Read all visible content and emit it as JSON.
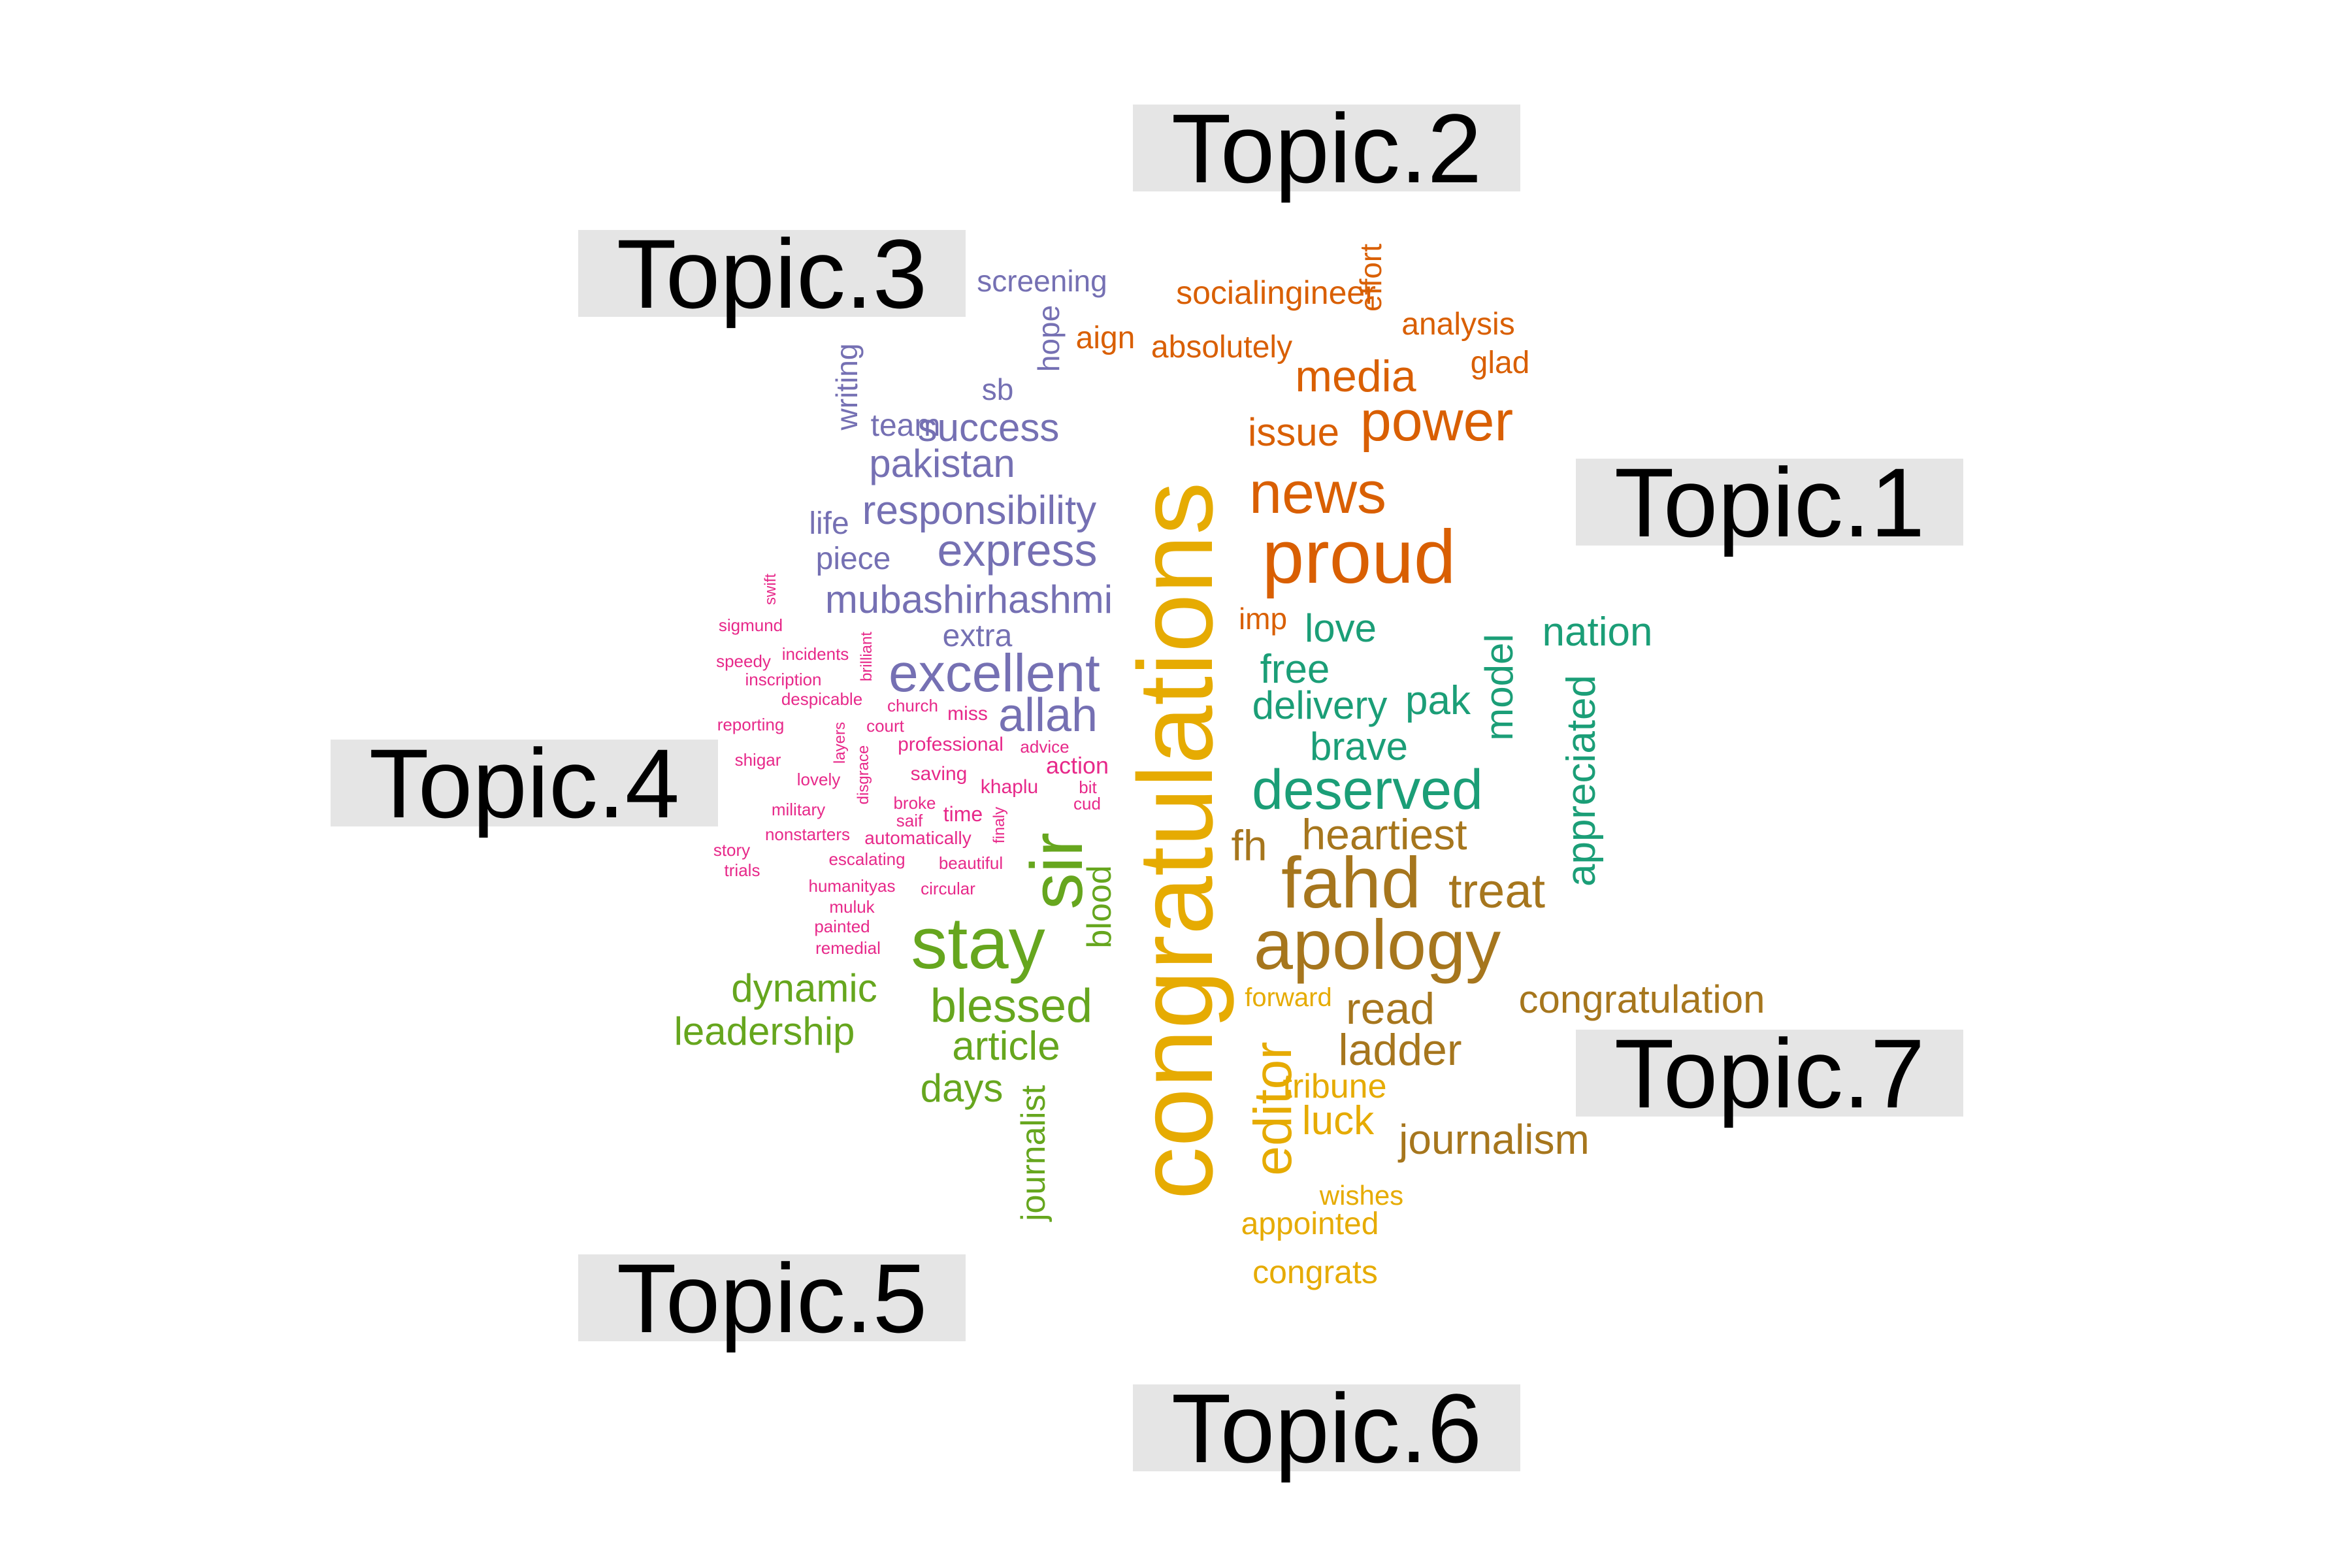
{
  "topics": [
    {
      "label": "Topic.1",
      "color": "#d95f02"
    },
    {
      "label": "Topic.2",
      "color": "#1b9e77"
    },
    {
      "label": "Topic.3",
      "color": "#7570b3"
    },
    {
      "label": "Topic.4",
      "color": "#e7298a"
    },
    {
      "label": "Topic.5",
      "color": "#66a61e"
    },
    {
      "label": "Topic.6",
      "color": "#e6ab02"
    },
    {
      "label": "Topic.7",
      "color": "#a6761d"
    }
  ],
  "words": [
    {
      "text": "socialingineer",
      "topic": 1
    },
    {
      "text": "effort",
      "topic": 1
    },
    {
      "text": "analysis",
      "topic": 1
    },
    {
      "text": "aign",
      "topic": 1
    },
    {
      "text": "absolutely",
      "topic": 1
    },
    {
      "text": "glad",
      "topic": 1
    },
    {
      "text": "media",
      "topic": 1
    },
    {
      "text": "issue",
      "topic": 1
    },
    {
      "text": "power",
      "topic": 1
    },
    {
      "text": "news",
      "topic": 1
    },
    {
      "text": "proud",
      "topic": 1
    },
    {
      "text": "imp",
      "topic": 1
    },
    {
      "text": "love",
      "topic": 2
    },
    {
      "text": "nation",
      "topic": 2
    },
    {
      "text": "model",
      "topic": 2
    },
    {
      "text": "free",
      "topic": 2
    },
    {
      "text": "appreciated",
      "topic": 2
    },
    {
      "text": "delivery",
      "topic": 2
    },
    {
      "text": "pak",
      "topic": 2
    },
    {
      "text": "brave",
      "topic": 2
    },
    {
      "text": "deserved",
      "topic": 2
    },
    {
      "text": "screening",
      "topic": 3
    },
    {
      "text": "hope",
      "topic": 3
    },
    {
      "text": "writing",
      "topic": 3
    },
    {
      "text": "sb",
      "topic": 3
    },
    {
      "text": "team",
      "topic": 3
    },
    {
      "text": "success",
      "topic": 3
    },
    {
      "text": "pakistan",
      "topic": 3
    },
    {
      "text": "responsibility",
      "topic": 3
    },
    {
      "text": "life",
      "topic": 3
    },
    {
      "text": "express",
      "topic": 3
    },
    {
      "text": "piece",
      "topic": 3
    },
    {
      "text": "mubashirhashmi",
      "topic": 3
    },
    {
      "text": "extra",
      "topic": 3
    },
    {
      "text": "excellent",
      "topic": 3
    },
    {
      "text": "allah",
      "topic": 3
    },
    {
      "text": "swift",
      "topic": 4
    },
    {
      "text": "sigmund",
      "topic": 4
    },
    {
      "text": "brilliant",
      "topic": 4
    },
    {
      "text": "speedy",
      "topic": 4
    },
    {
      "text": "incidents",
      "topic": 4
    },
    {
      "text": "inscription",
      "topic": 4
    },
    {
      "text": "despicable",
      "topic": 4
    },
    {
      "text": "church",
      "topic": 4
    },
    {
      "text": "miss",
      "topic": 4
    },
    {
      "text": "reporting",
      "topic": 4
    },
    {
      "text": "court",
      "topic": 4
    },
    {
      "text": "layers",
      "topic": 4
    },
    {
      "text": "disgrace",
      "topic": 4
    },
    {
      "text": "professional",
      "topic": 4
    },
    {
      "text": "advice",
      "topic": 4
    },
    {
      "text": "shigar",
      "topic": 4
    },
    {
      "text": "action",
      "topic": 4
    },
    {
      "text": "lovely",
      "topic": 4
    },
    {
      "text": "saving",
      "topic": 4
    },
    {
      "text": "khaplu",
      "topic": 4
    },
    {
      "text": "bit",
      "topic": 4
    },
    {
      "text": "broke",
      "topic": 4
    },
    {
      "text": "cud",
      "topic": 4
    },
    {
      "text": "military",
      "topic": 4
    },
    {
      "text": "saif",
      "topic": 4
    },
    {
      "text": "time",
      "topic": 4
    },
    {
      "text": "finaly",
      "topic": 4
    },
    {
      "text": "nonstarters",
      "topic": 4
    },
    {
      "text": "automatically",
      "topic": 4
    },
    {
      "text": "story",
      "topic": 4
    },
    {
      "text": "escalating",
      "topic": 4
    },
    {
      "text": "beautiful",
      "topic": 4
    },
    {
      "text": "trials",
      "topic": 4
    },
    {
      "text": "humanityas",
      "topic": 4
    },
    {
      "text": "circular",
      "topic": 4
    },
    {
      "text": "muluk",
      "topic": 4
    },
    {
      "text": "painted",
      "topic": 4
    },
    {
      "text": "remedial",
      "topic": 4
    },
    {
      "text": "sir",
      "topic": 5
    },
    {
      "text": "stay",
      "topic": 5
    },
    {
      "text": "blood",
      "topic": 5
    },
    {
      "text": "dynamic",
      "topic": 5
    },
    {
      "text": "blessed",
      "topic": 5
    },
    {
      "text": "leadership",
      "topic": 5
    },
    {
      "text": "article",
      "topic": 5
    },
    {
      "text": "days",
      "topic": 5
    },
    {
      "text": "journalist",
      "topic": 5
    },
    {
      "text": "congratulations",
      "topic": 6
    },
    {
      "text": "forward",
      "topic": 6
    },
    {
      "text": "editor",
      "topic": 6
    },
    {
      "text": "tribune",
      "topic": 6
    },
    {
      "text": "luck",
      "topic": 6
    },
    {
      "text": "wishes",
      "topic": 6
    },
    {
      "text": "appointed",
      "topic": 6
    },
    {
      "text": "congrats",
      "topic": 6
    },
    {
      "text": "heartiest",
      "topic": 7
    },
    {
      "text": "fh",
      "topic": 7
    },
    {
      "text": "fahd",
      "topic": 7
    },
    {
      "text": "treat",
      "topic": 7
    },
    {
      "text": "apology",
      "topic": 7
    },
    {
      "text": "read",
      "topic": 7
    },
    {
      "text": "congratulation",
      "topic": 7
    },
    {
      "text": "ladder",
      "topic": 7
    },
    {
      "text": "journalism",
      "topic": 7
    }
  ]
}
